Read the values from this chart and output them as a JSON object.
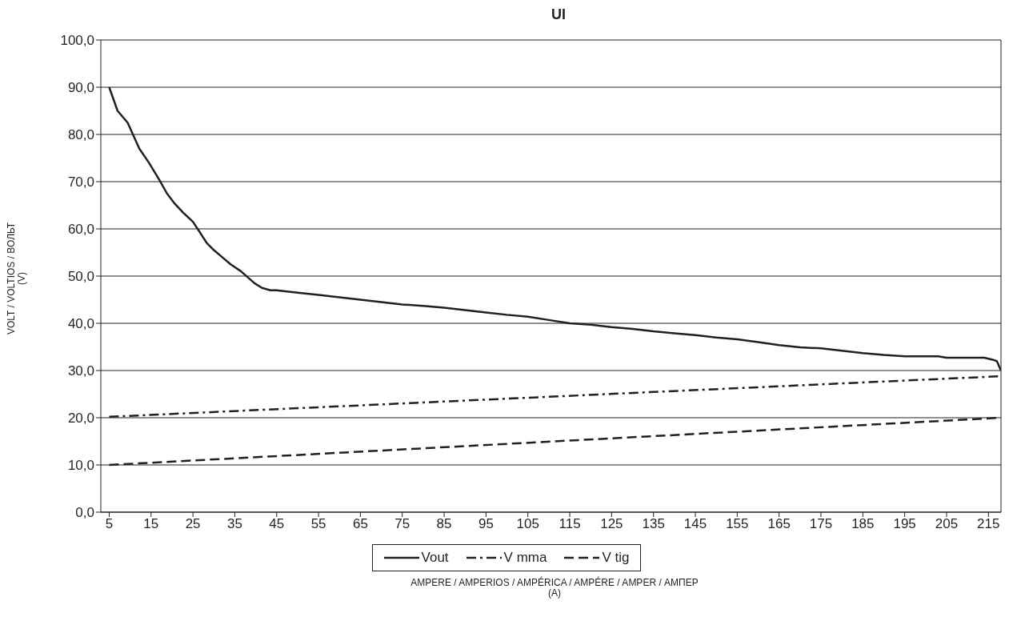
{
  "chart_data": {
    "type": "line",
    "title": "UI",
    "xlabel": "AMPERE / AMPERIOS / AMPÉRICA / AMPÉRE / AMPER / АМПЕР\n(A)",
    "ylabel": "VOLT / VOLTIOS / ВОЛЬТ\n(V)",
    "series": [
      {
        "name": "Vout",
        "color": "#231f20",
        "line_style": "solid",
        "x": [
          5,
          7,
          9.4,
          12.2,
          14.5,
          16.9,
          18.8,
          20.5,
          22.6,
          25,
          26.5,
          28.3,
          30,
          32,
          34,
          36.5,
          39.7,
          41.5,
          43.5,
          45,
          50,
          55,
          60,
          65,
          70,
          75,
          80,
          85,
          90,
          95,
          100,
          105,
          110,
          115,
          120,
          125,
          130,
          135,
          140,
          145,
          150,
          155,
          160,
          165,
          170,
          175,
          180,
          185,
          190,
          195,
          200,
          203,
          205,
          210,
          214,
          216,
          217,
          218
        ],
        "values": [
          90,
          85,
          82.5,
          77,
          74,
          70.5,
          67.5,
          65.5,
          63.5,
          61.5,
          59.5,
          57,
          55.5,
          54,
          52.5,
          51,
          48.5,
          47.5,
          47,
          47,
          46.5,
          46,
          45.5,
          45,
          44.5,
          44,
          43.7,
          43.3,
          42.8,
          42.3,
          41.8,
          41.4,
          40.7,
          40,
          39.7,
          39.2,
          38.8,
          38.3,
          37.9,
          37.5,
          37,
          36.6,
          36,
          35.4,
          34.9,
          34.7,
          34.2,
          33.7,
          33.3,
          33,
          33,
          33,
          32.7,
          32.7,
          32.7,
          32.3,
          32,
          30
        ]
      },
      {
        "name": "V mma",
        "color": "#231f20",
        "line_style": "dashdot",
        "x": [
          5,
          218
        ],
        "values": [
          20.2,
          28.8
        ]
      },
      {
        "name": "V tig",
        "color": "#231f20",
        "line_style": "dashed",
        "x": [
          5,
          218
        ],
        "values": [
          10,
          20
        ]
      }
    ],
    "xlim": [
      3,
      218
    ],
    "xticks": [
      5,
      15,
      25,
      35,
      45,
      55,
      65,
      75,
      85,
      95,
      105,
      115,
      125,
      135,
      145,
      155,
      165,
      175,
      185,
      195,
      205,
      215
    ],
    "ylim": [
      0,
      100
    ],
    "yticks": [
      {
        "value": 0,
        "label": "0,0"
      },
      {
        "value": 10,
        "label": "10,0"
      },
      {
        "value": 20,
        "label": "20,0"
      },
      {
        "value": 30,
        "label": "30,0"
      },
      {
        "value": 40,
        "label": "40,0"
      },
      {
        "value": 50,
        "label": "50,0"
      },
      {
        "value": 60,
        "label": "60,0"
      },
      {
        "value": 70,
        "label": "70,0"
      },
      {
        "value": 80,
        "label": "80,0"
      },
      {
        "value": 90,
        "label": "90,0"
      },
      {
        "value": 100,
        "label": "100,0"
      }
    ],
    "grid": "y",
    "legend": "bottom",
    "marker": "none"
  }
}
